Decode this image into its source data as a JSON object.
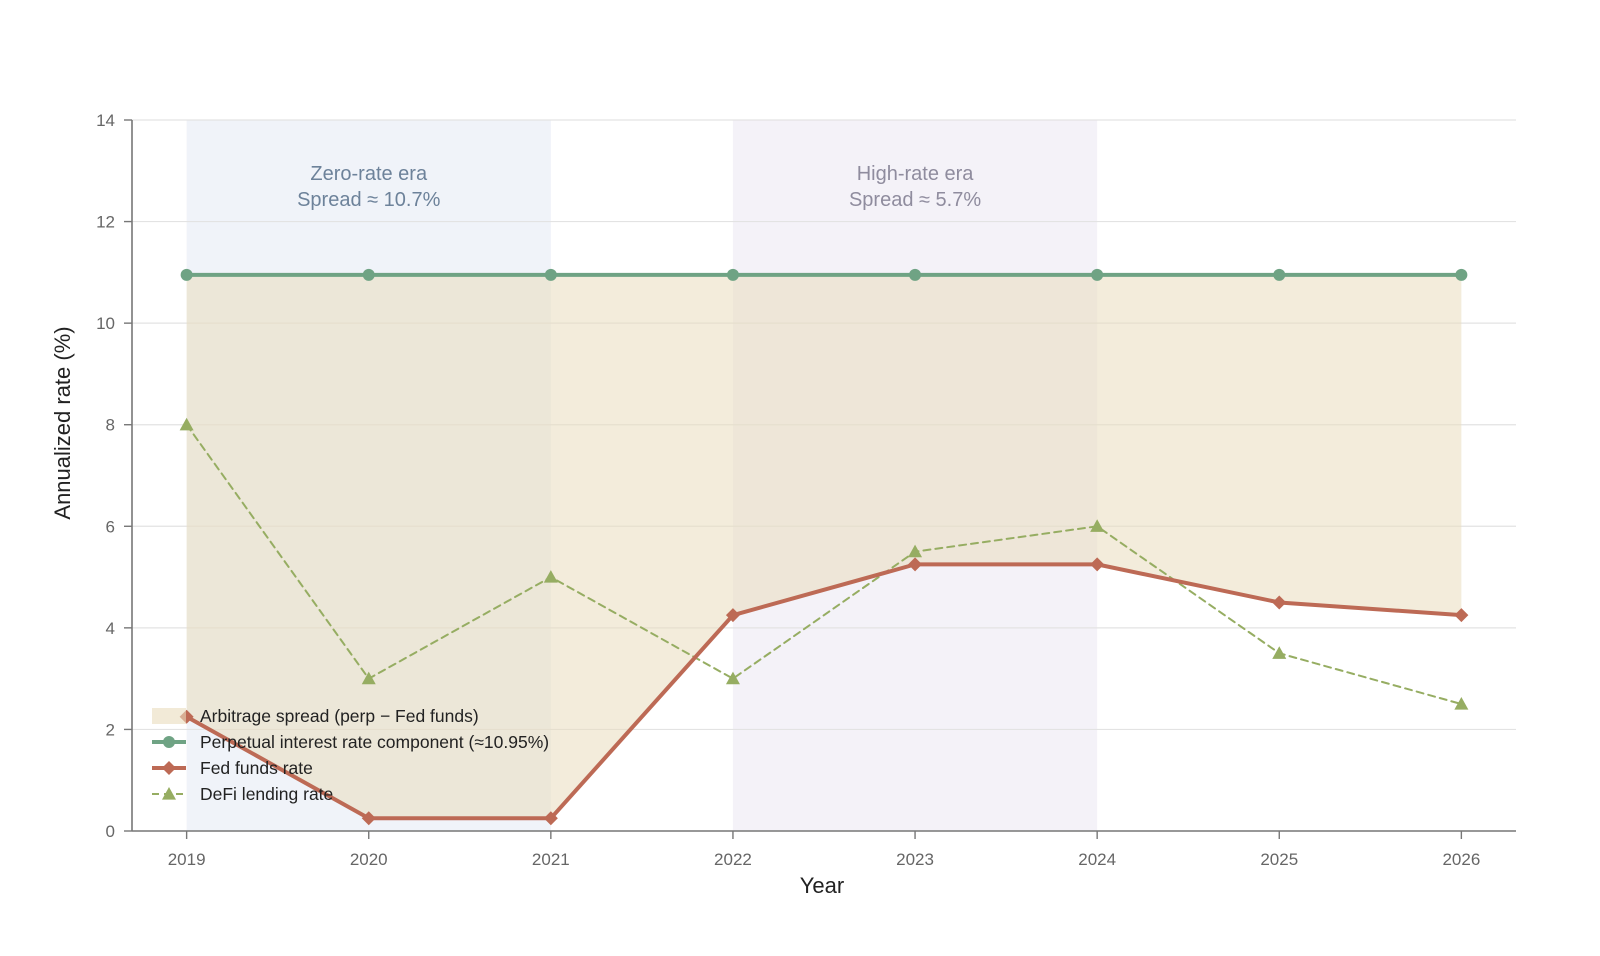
{
  "chart_data": {
    "type": "line",
    "xlabel": "Year",
    "ylabel": "Annualized rate (%)",
    "x": [
      2019,
      2020,
      2021,
      2022,
      2023,
      2024,
      2025,
      2026
    ],
    "x_tick_labels": [
      "2019",
      "2020",
      "2021",
      "2022",
      "2023",
      "2024",
      "2025",
      "2026"
    ],
    "y_ticks": [
      0,
      2,
      4,
      6,
      8,
      10,
      12,
      14
    ],
    "y_tick_labels": [
      "0",
      "2",
      "4",
      "6",
      "8",
      "10",
      "12",
      "14"
    ],
    "xlim": [
      2018.7,
      2026.3
    ],
    "ylim": [
      0,
      14
    ],
    "grid": "horizontal",
    "legend_placement": "lower-left",
    "series": [
      {
        "key": "perp",
        "name": "Perpetual interest rate component (≈10.95%)",
        "style": "solid",
        "marker": "circle",
        "color": "#6fa384",
        "values": [
          10.95,
          10.95,
          10.95,
          10.95,
          10.95,
          10.95,
          10.95,
          10.95
        ]
      },
      {
        "key": "fed",
        "name": "Fed funds rate",
        "style": "solid",
        "marker": "diamond",
        "color": "#bd6a55",
        "values": [
          2.25,
          0.25,
          0.25,
          4.25,
          5.25,
          5.25,
          4.5,
          4.25
        ]
      },
      {
        "key": "defi",
        "name": "DeFi lending rate",
        "style": "dashed",
        "marker": "triangle",
        "color": "#96ad62",
        "values": [
          8.0,
          3.0,
          5.0,
          3.0,
          5.5,
          6.0,
          3.5,
          2.5
        ]
      }
    ],
    "fill_between": {
      "name": "Arbitrage spread (perp − Fed funds)",
      "upper": "perp",
      "lower": "fed",
      "color": "#e9dcbd"
    },
    "regions": [
      {
        "x0": 2019,
        "x1": 2021,
        "label_line1": "Zero-rate era",
        "label_line2": "Spread ≈ 10.7%",
        "color": "#dde5f1",
        "text_color": "#6d829a"
      },
      {
        "x0": 2022,
        "x1": 2024,
        "label_line1": "High-rate era",
        "label_line2": "Spread ≈ 5.7%",
        "color": "#e6e3ef",
        "text_color": "#8f8c9e"
      }
    ]
  }
}
